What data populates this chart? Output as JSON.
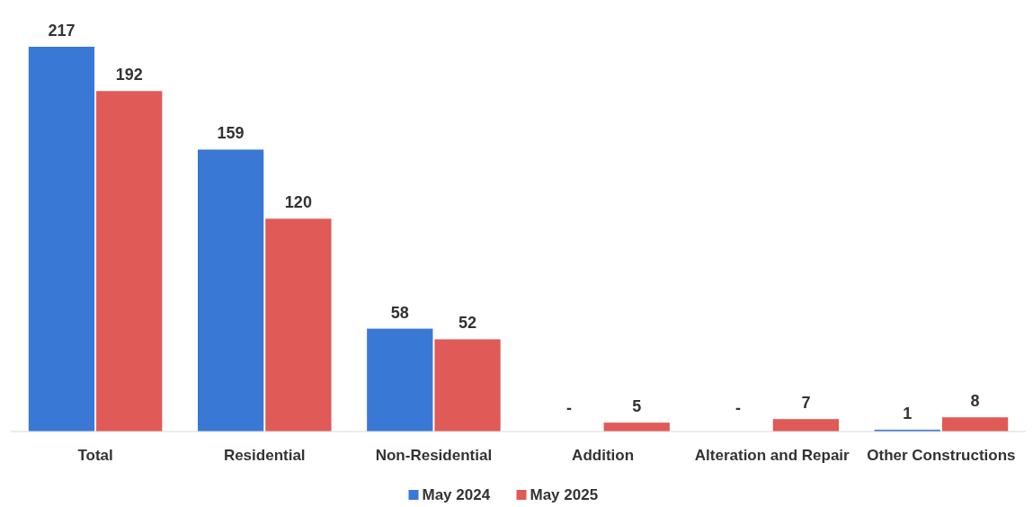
{
  "chart_data": {
    "type": "bar",
    "categories": [
      "Total",
      "Residential",
      "Non-Residential",
      "Addition",
      "Alteration and Repair",
      "Other Constructions"
    ],
    "series": [
      {
        "name": "May 2024",
        "color": "#3a78d6",
        "values": [
          217,
          159,
          58,
          null,
          null,
          1
        ],
        "value_labels": [
          "217",
          "159",
          "58",
          "-",
          "-",
          "1"
        ]
      },
      {
        "name": "May 2025",
        "color": "#e05a57",
        "values": [
          192,
          120,
          52,
          5,
          7,
          8
        ],
        "value_labels": [
          "192",
          "120",
          "52",
          "5",
          "7",
          "8"
        ]
      }
    ],
    "legend": "bottom"
  }
}
